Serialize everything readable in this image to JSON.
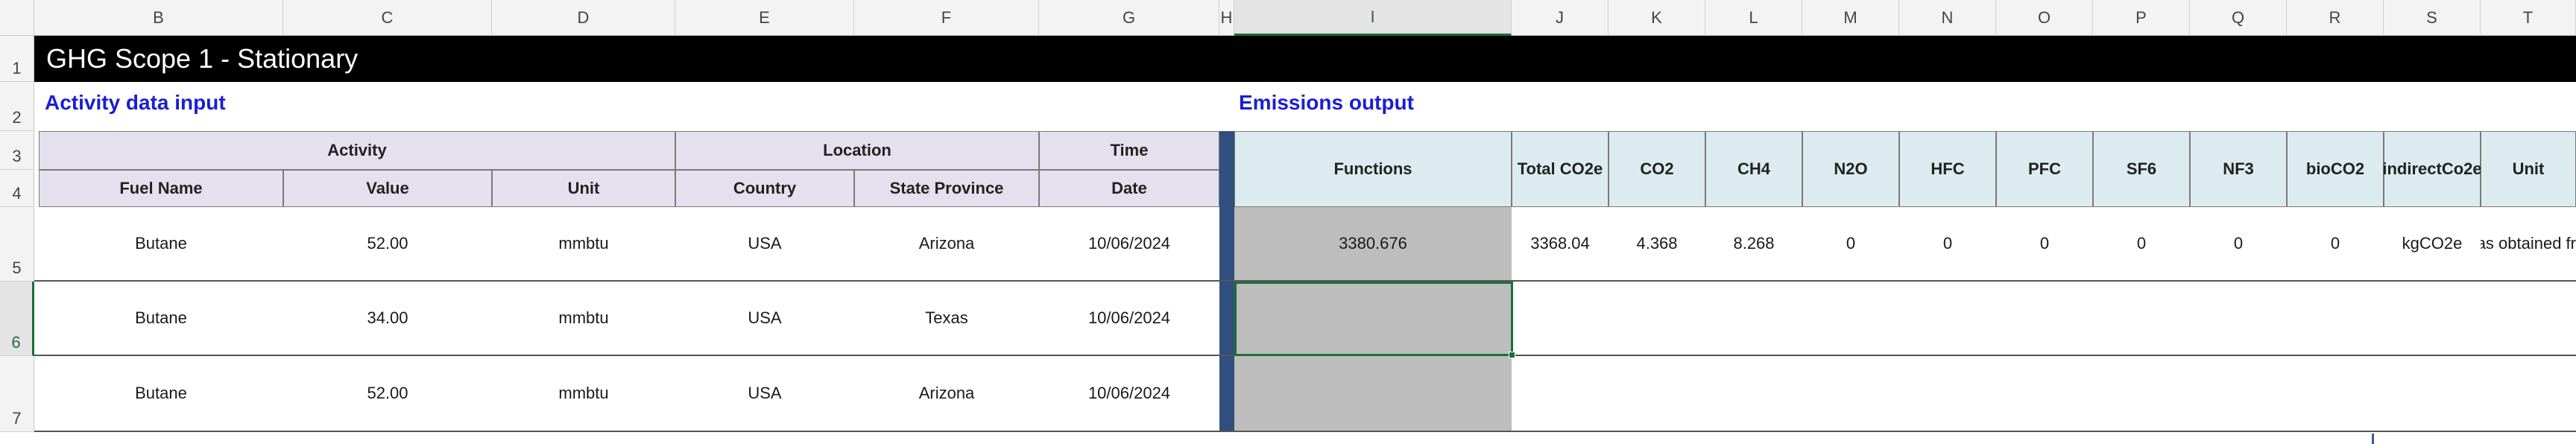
{
  "columns": [
    "B",
    "C",
    "D",
    "E",
    "F",
    "G",
    "H",
    "I",
    "J",
    "K",
    "L",
    "M",
    "N",
    "O",
    "P",
    "Q",
    "R",
    "S",
    "T"
  ],
  "rows": [
    "1",
    "2",
    "3",
    "4",
    "5",
    "6",
    "7"
  ],
  "title": "GHG Scope 1 - Stationary",
  "activity_section": "Activity data input",
  "emissions_section": "Emissions output",
  "groups": {
    "activity": "Activity",
    "location": "Location",
    "time": "Time"
  },
  "input_headers": [
    "Fuel Name",
    "Value",
    "Unit",
    "Country",
    "State Province",
    "Date"
  ],
  "output_headers": [
    "Functions",
    "Total CO2e",
    "CO2",
    "CH4",
    "N2O",
    "HFC",
    "PFC",
    "SF6",
    "NF3",
    "bioCO2",
    "indirectCo2e",
    "Unit"
  ],
  "input_rows": [
    [
      "Butane",
      "52.00",
      "mmbtu",
      "USA",
      "Arizona",
      "10/06/2024"
    ],
    [
      "Butane",
      "34.00",
      "mmbtu",
      "USA",
      "Texas",
      "10/06/2024"
    ],
    [
      "Butane",
      "52.00",
      "mmbtu",
      "USA",
      "Arizona",
      "10/06/2024"
    ]
  ],
  "output_row": [
    "3380.676",
    "3368.04",
    "4.368",
    "8.268",
    "0",
    "0",
    "0",
    "0",
    "0",
    "0",
    "kgCO2e",
    "as obtained fr"
  ]
}
